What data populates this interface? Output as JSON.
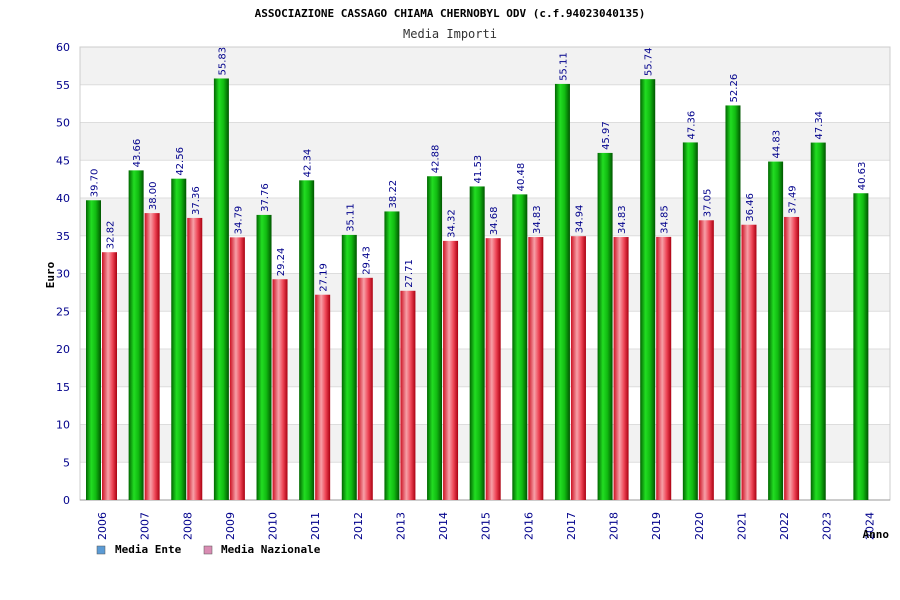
{
  "chart_data": {
    "type": "bar",
    "title": "ASSOCIAZIONE CASSAGO CHIAMA CHERNOBYL ODV (c.f.94023040135)",
    "subtitle": "Media Importi",
    "xlabel": "Anno",
    "ylabel": "Euro",
    "ylim": [
      0,
      60
    ],
    "yticks": [
      0,
      5,
      10,
      15,
      20,
      25,
      30,
      35,
      40,
      45,
      50,
      55,
      60
    ],
    "grid": true,
    "legend_position": "bottom-left",
    "categories": [
      "2006",
      "2007",
      "2008",
      "2009",
      "2010",
      "2011",
      "2012",
      "2013",
      "2014",
      "2015",
      "2016",
      "2017",
      "2018",
      "2019",
      "2020",
      "2021",
      "2022",
      "2023",
      "2024"
    ],
    "series": [
      {
        "name": "Media Ente",
        "legend_color": "#5b9bd5",
        "bar_color": "#00aa00",
        "values": [
          39.7,
          43.66,
          42.56,
          55.83,
          37.76,
          42.34,
          35.11,
          38.22,
          42.88,
          41.53,
          40.48,
          55.11,
          45.97,
          55.74,
          47.36,
          52.26,
          44.83,
          47.34,
          40.63
        ],
        "labels": [
          "39.70",
          "43.66",
          "42.56",
          "55.83",
          "37.76",
          "42.34",
          "35.11",
          "38.22",
          "42.88",
          "41.53",
          "40.48",
          "55.11",
          "45.97",
          "55.74",
          "47.36",
          "52.26",
          "44.83",
          "47.34",
          "40.63"
        ]
      },
      {
        "name": "Media Nazionale",
        "legend_color": "#d98cb3",
        "bar_color": "#e0303a",
        "values": [
          32.82,
          38.0,
          37.36,
          34.79,
          29.24,
          27.19,
          29.43,
          27.71,
          34.32,
          34.68,
          34.83,
          34.94,
          34.83,
          34.85,
          37.05,
          36.46,
          37.49,
          null,
          null
        ],
        "labels": [
          "32.82",
          "38.00",
          "37.36",
          "34.79",
          "29.24",
          "27.19",
          "29.43",
          "27.71",
          "34.32",
          "34.68",
          "34.83",
          "34.94",
          "34.83",
          "34.85",
          "37.05",
          "36.46",
          "37.49",
          "",
          ""
        ]
      }
    ]
  }
}
